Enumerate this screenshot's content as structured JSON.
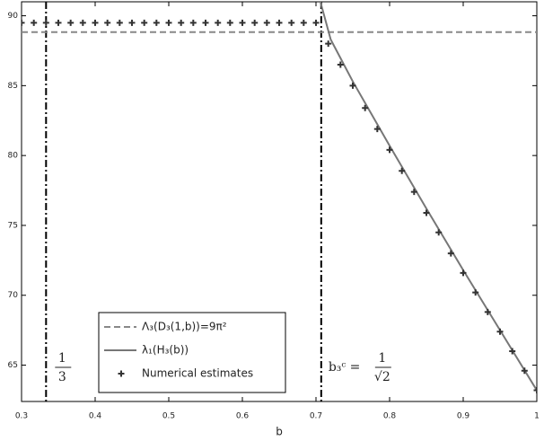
{
  "chart_data": {
    "type": "line",
    "xlabel": "b",
    "xlim": [
      0.3,
      1.0
    ],
    "ylim": [
      62.4,
      91
    ],
    "xticks": [
      0.3,
      0.4,
      0.5,
      0.6,
      0.7,
      0.8,
      0.9,
      1
    ],
    "yticks": [
      65,
      70,
      75,
      80,
      85,
      90
    ],
    "vlines": [
      0.3333,
      0.7071
    ],
    "vline_color": "#000000",
    "annotations": [
      {
        "numerator": "1",
        "denominator": "3"
      },
      {
        "prefix": "b₃ᶜ =",
        "numerator": "1",
        "denominator": "√2"
      }
    ],
    "legend": "bottom-left",
    "series": [
      {
        "name": "Λ₃(D₃(1,b))=9π²",
        "color": "#888888",
        "style": "dashed",
        "x": [
          0.3,
          1.0
        ],
        "values": [
          88.83,
          88.83
        ]
      },
      {
        "name": "λ₁(H₃(b))",
        "color": "#777777",
        "style": "solid",
        "x": [
          0.706,
          0.72,
          0.75,
          0.8,
          0.85,
          0.9,
          0.95,
          1.0
        ],
        "values": [
          91,
          88.3,
          85.3,
          80.7,
          76.2,
          71.8,
          67.5,
          63.2
        ]
      },
      {
        "name": "Numerical estimates",
        "color": "#333333",
        "style": "plus",
        "x": [
          0.3,
          0.3167,
          0.3333,
          0.35,
          0.3667,
          0.3833,
          0.4,
          0.4167,
          0.4333,
          0.45,
          0.4667,
          0.4833,
          0.5,
          0.5167,
          0.5333,
          0.55,
          0.5667,
          0.5833,
          0.6,
          0.6167,
          0.6333,
          0.65,
          0.6667,
          0.6833,
          0.7,
          0.7167,
          0.7333,
          0.75,
          0.7667,
          0.7833,
          0.8,
          0.8167,
          0.8333,
          0.85,
          0.8667,
          0.8833,
          0.9,
          0.9167,
          0.9333,
          0.95,
          0.9667,
          0.9833,
          1.0
        ],
        "values": [
          89.5,
          89.5,
          89.5,
          89.5,
          89.5,
          89.5,
          89.5,
          89.5,
          89.5,
          89.5,
          89.5,
          89.5,
          89.5,
          89.5,
          89.5,
          89.5,
          89.5,
          89.5,
          89.5,
          89.5,
          89.5,
          89.5,
          89.5,
          89.5,
          89.5,
          88.0,
          86.5,
          85.0,
          83.4,
          81.9,
          80.4,
          78.9,
          77.4,
          75.9,
          74.5,
          73.0,
          71.6,
          70.2,
          68.8,
          67.4,
          66.0,
          64.6,
          63.2
        ]
      }
    ]
  }
}
